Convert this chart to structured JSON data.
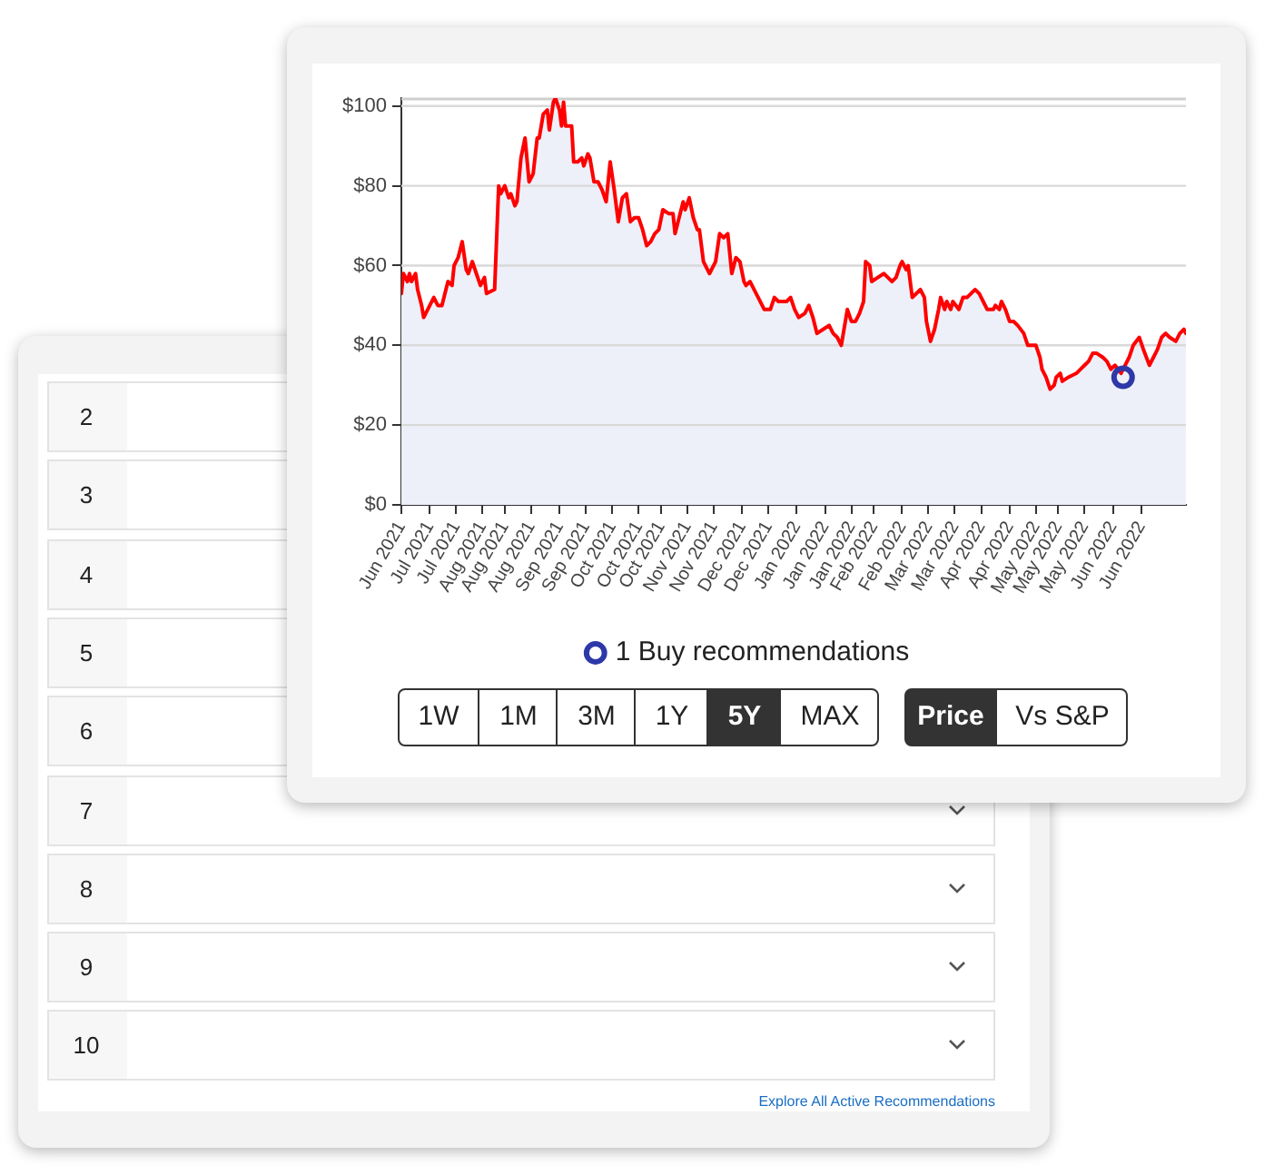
{
  "chart_data": {
    "type": "area",
    "series": [
      {
        "type": "area",
        "color": "#ff0000",
        "x": [
          "2021-06-23",
          "2021-06-24",
          "2021-06-26",
          "2021-06-27",
          "2021-06-28",
          "2021-06-30",
          "2021-07-01",
          "2021-07-03",
          "2021-07-04",
          "2021-07-06",
          "2021-07-09",
          "2021-07-11",
          "2021-07-13",
          "2021-07-15",
          "2021-07-16",
          "2021-07-18",
          "2021-07-19",
          "2021-07-21",
          "2021-07-23",
          "2021-07-25",
          "2021-07-26",
          "2021-07-28",
          "2021-07-30",
          "2021-08-01",
          "2021-08-03",
          "2021-08-04",
          "2021-08-08",
          "2021-08-10",
          "2021-08-11",
          "2021-08-13",
          "2021-08-15",
          "2021-08-16",
          "2021-08-18",
          "2021-08-19",
          "2021-08-21",
          "2021-08-23",
          "2021-08-25",
          "2021-08-27",
          "2021-08-29",
          "2021-08-30",
          "2021-09-01",
          "2021-09-03",
          "2021-09-04",
          "2021-09-06",
          "2021-09-07",
          "2021-09-09",
          "2021-09-10",
          "2021-09-11",
          "2021-09-12",
          "2021-09-15",
          "2021-09-16",
          "2021-09-18",
          "2021-09-20",
          "2021-09-21",
          "2021-09-23",
          "2021-09-24",
          "2021-09-26",
          "2021-09-28",
          "2021-09-30",
          "2021-10-02",
          "2021-10-04",
          "2021-10-06",
          "2021-10-08",
          "2021-10-10",
          "2021-10-12",
          "2021-10-14",
          "2021-10-16",
          "2021-10-18",
          "2021-10-20",
          "2021-10-22",
          "2021-10-24",
          "2021-10-26",
          "2021-10-28",
          "2021-10-30",
          "2021-11-02",
          "2021-11-04",
          "2021-11-05",
          "2021-11-07",
          "2021-11-09",
          "2021-11-10",
          "2021-11-12",
          "2021-11-14",
          "2021-11-16",
          "2021-11-17",
          "2021-11-19",
          "2021-11-22",
          "2021-11-25",
          "2021-11-27",
          "2021-11-29",
          "2021-12-01",
          "2021-12-03",
          "2021-12-05",
          "2021-12-07",
          "2021-12-09",
          "2021-12-10",
          "2021-12-12",
          "2021-12-14",
          "2021-12-16",
          "2021-12-18",
          "2021-12-19",
          "2021-12-22",
          "2021-12-24",
          "2021-12-26",
          "2021-12-30",
          "2022-01-01",
          "2022-01-03",
          "2022-01-05",
          "2022-01-08",
          "2022-01-10",
          "2022-01-12",
          "2022-01-14",
          "2022-01-17",
          "2022-01-20",
          "2022-01-22",
          "2022-01-24",
          "2022-01-26",
          "2022-01-27",
          "2022-01-29",
          "2022-01-31",
          "2022-02-02",
          "2022-02-04",
          "2022-02-06",
          "2022-02-07",
          "2022-02-09",
          "2022-02-10",
          "2022-02-13",
          "2022-02-16",
          "2022-02-18",
          "2022-02-20",
          "2022-02-22",
          "2022-02-24",
          "2022-02-25",
          "2022-02-27",
          "2022-02-28",
          "2022-03-02",
          "2022-03-04",
          "2022-03-06",
          "2022-03-08",
          "2022-03-09",
          "2022-03-11",
          "2022-03-13",
          "2022-03-15",
          "2022-03-16",
          "2022-03-18",
          "2022-03-19",
          "2022-03-21",
          "2022-03-22",
          "2022-03-25",
          "2022-03-27",
          "2022-03-29",
          "2022-04-02",
          "2022-04-04",
          "2022-04-06",
          "2022-04-08",
          "2022-04-11",
          "2022-04-12",
          "2022-04-14",
          "2022-04-15",
          "2022-04-17",
          "2022-04-19",
          "2022-04-21",
          "2022-04-23",
          "2022-04-26",
          "2022-04-28",
          "2022-05-02",
          "2022-05-04",
          "2022-05-05",
          "2022-05-07",
          "2022-05-09",
          "2022-05-11",
          "2022-05-12",
          "2022-05-14",
          "2022-05-15",
          "2022-05-18",
          "2022-05-22",
          "2022-05-24",
          "2022-05-26",
          "2022-05-28",
          "2022-05-30",
          "2022-06-01",
          "2022-06-04",
          "2022-06-06",
          "2022-06-08",
          "2022-06-10",
          "2022-06-13",
          "2022-06-17",
          "2022-06-19",
          "2022-06-22",
          "2022-06-24",
          "2022-06-27",
          "2022-06-29",
          "2022-07-01",
          "2022-07-03",
          "2022-07-05",
          "2022-07-07",
          "2022-07-10",
          "2022-07-12",
          "2022-07-14",
          "2022-07-15"
        ],
        "values": [
          53,
          58,
          56,
          58,
          56,
          58,
          54,
          50,
          47,
          49,
          52,
          50,
          50,
          54,
          56,
          55,
          60,
          62,
          66,
          59,
          58,
          61,
          58,
          55,
          57,
          53,
          54,
          80,
          78,
          80,
          77,
          78,
          75,
          76,
          87,
          92,
          81,
          83,
          92,
          92,
          98,
          99,
          94,
          101,
          102,
          99,
          95,
          101,
          95,
          95,
          86,
          86,
          87,
          85,
          88,
          87,
          81,
          81,
          79,
          76,
          86,
          79,
          71,
          77,
          78,
          71,
          72,
          72,
          69,
          65,
          66,
          68,
          69,
          74,
          73,
          73,
          68,
          72,
          76,
          74,
          77,
          72,
          69,
          69,
          61,
          58,
          61,
          68,
          67,
          68,
          58,
          62,
          61,
          56,
          55,
          56,
          54,
          52,
          50,
          49,
          49,
          52,
          51,
          51,
          52,
          49,
          47,
          48,
          50,
          47,
          43,
          44,
          45,
          43,
          42,
          40,
          43,
          49,
          46,
          46,
          48,
          51,
          61,
          60,
          56,
          57,
          58,
          57,
          56,
          57,
          60,
          61,
          59,
          60,
          52,
          53,
          54,
          52,
          46,
          41,
          44,
          49,
          52,
          49,
          51,
          49,
          51,
          49,
          52,
          52,
          54,
          53,
          51,
          49,
          49,
          50,
          49,
          51,
          49,
          46,
          46,
          45,
          43,
          40,
          40,
          37,
          34,
          32,
          29,
          30,
          32,
          33,
          31,
          32,
          33,
          34,
          35,
          36,
          38,
          38,
          37,
          36,
          34,
          35,
          33,
          37,
          40,
          42,
          39,
          35,
          37,
          39,
          42,
          43,
          42,
          41,
          43,
          44,
          43
        ]
      },
      {
        "type": "scatter",
        "name": "1 Buy recommendations",
        "color": "#2e38a8",
        "x": [
          "2022-06-14"
        ],
        "values": [
          32
        ]
      }
    ],
    "xlim": [
      "2021-06-23",
      "2022-07-15"
    ],
    "xticks": [
      {
        "value": "2021-06-23",
        "label": "Jun 2021"
      },
      {
        "value": "2021-07-07",
        "label": "Jul 2021"
      },
      {
        "value": "2021-07-20",
        "label": "Jul 2021"
      },
      {
        "value": "2021-08-02",
        "label": "Aug 2021"
      },
      {
        "value": "2021-08-13",
        "label": "Aug 2021"
      },
      {
        "value": "2021-08-26",
        "label": "Aug 2021"
      },
      {
        "value": "2021-09-09",
        "label": "Sep 2021"
      },
      {
        "value": "2021-09-22",
        "label": "Sep 2021"
      },
      {
        "value": "2021-10-05",
        "label": "Oct 2021"
      },
      {
        "value": "2021-10-18",
        "label": "Oct 2021"
      },
      {
        "value": "2021-10-29",
        "label": "Oct 2021"
      },
      {
        "value": "2021-11-11",
        "label": "Nov 2021"
      },
      {
        "value": "2021-11-24",
        "label": "Nov 2021"
      },
      {
        "value": "2021-12-08",
        "label": "Dec 2021"
      },
      {
        "value": "2021-12-21",
        "label": "Dec 2021"
      },
      {
        "value": "2022-01-04",
        "label": "Jan 2022"
      },
      {
        "value": "2022-01-18",
        "label": "Jan 2022"
      },
      {
        "value": "2022-01-31",
        "label": "Jan 2022"
      },
      {
        "value": "2022-02-11",
        "label": "Feb 2022"
      },
      {
        "value": "2022-02-25",
        "label": "Feb 2022"
      },
      {
        "value": "2022-03-10",
        "label": "Mar 2022"
      },
      {
        "value": "2022-03-23",
        "label": "Mar 2022"
      },
      {
        "value": "2022-04-05",
        "label": "Apr 2022"
      },
      {
        "value": "2022-04-19",
        "label": "Apr 2022"
      },
      {
        "value": "2022-05-02",
        "label": "May 2022"
      },
      {
        "value": "2022-05-13",
        "label": "May 2022"
      },
      {
        "value": "2022-05-26",
        "label": "May 2022"
      },
      {
        "value": "2022-06-09",
        "label": "Jun 2022"
      },
      {
        "value": "2022-06-23",
        "label": "Jun 2022"
      }
    ],
    "ylim": [
      0,
      102
    ],
    "yticks": [
      {
        "value": 0,
        "label": "$0"
      },
      {
        "value": 20,
        "label": "$20"
      },
      {
        "value": 40,
        "label": "$40"
      },
      {
        "value": 60,
        "label": "$60"
      },
      {
        "value": 80,
        "label": "$80"
      },
      {
        "value": 100,
        "label": "$100"
      }
    ],
    "grid": "y",
    "legend": "bottom",
    "annotations": [
      "1W",
      "1M",
      "3M",
      "1Y",
      "5Y",
      "MAX",
      "Price",
      "Vs S&P",
      "2",
      "3",
      "4",
      "5",
      "6",
      "7",
      "8",
      "9",
      "10",
      "Explore All Active Recommendations"
    ]
  }
}
